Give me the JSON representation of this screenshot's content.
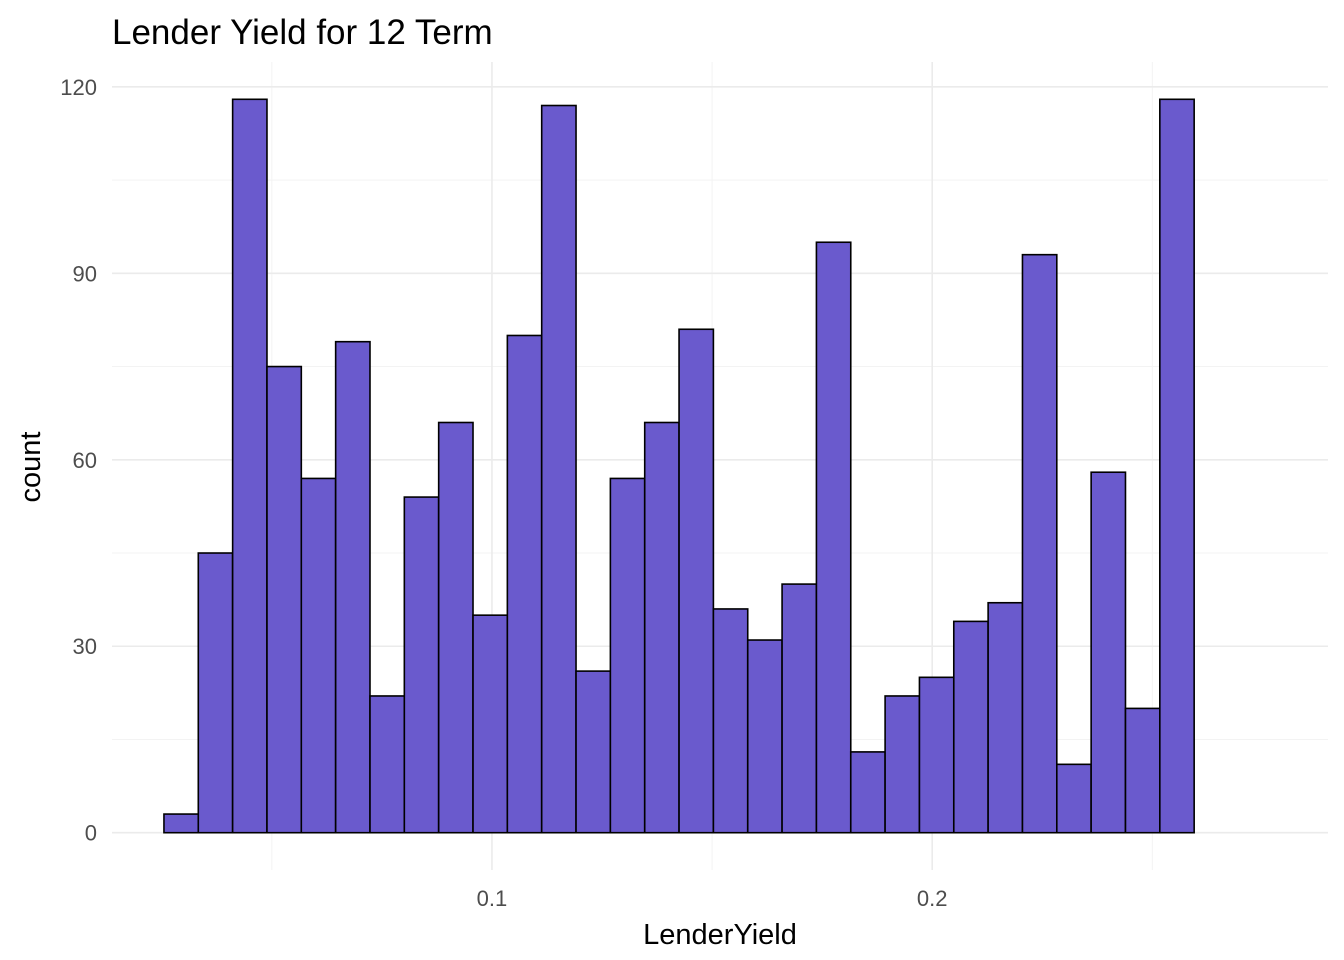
{
  "chart_data": {
    "type": "bar",
    "title": "Lender Yield for 12 Term",
    "xlabel": "LenderYield",
    "ylabel": "count",
    "bar_color": "#6a5acd",
    "bar_outline_color": "#000000",
    "bin_width": 0.0078,
    "first_bin_start": 0.0255,
    "counts": [
      3,
      45,
      118,
      75,
      57,
      79,
      22,
      54,
      66,
      35,
      80,
      117,
      26,
      57,
      66,
      81,
      36,
      31,
      40,
      95,
      13,
      22,
      25,
      34,
      37,
      93,
      11,
      58,
      20,
      118
    ],
    "x_ticks": [
      {
        "value": 0.1,
        "label": "0.1"
      },
      {
        "value": 0.2,
        "label": "0.2"
      }
    ],
    "x_minor_ticks": [
      0.05,
      0.15,
      0.25
    ],
    "y_ticks": [
      {
        "value": 0,
        "label": "0"
      },
      {
        "value": 30,
        "label": "30"
      },
      {
        "value": 60,
        "label": "60"
      },
      {
        "value": 90,
        "label": "90"
      },
      {
        "value": 120,
        "label": "120"
      }
    ],
    "y_minor_ticks": [
      15,
      45,
      75,
      105
    ],
    "xlim": [
      0.0137,
      0.2899
    ],
    "ylim": [
      -6,
      124
    ],
    "grid": true
  }
}
